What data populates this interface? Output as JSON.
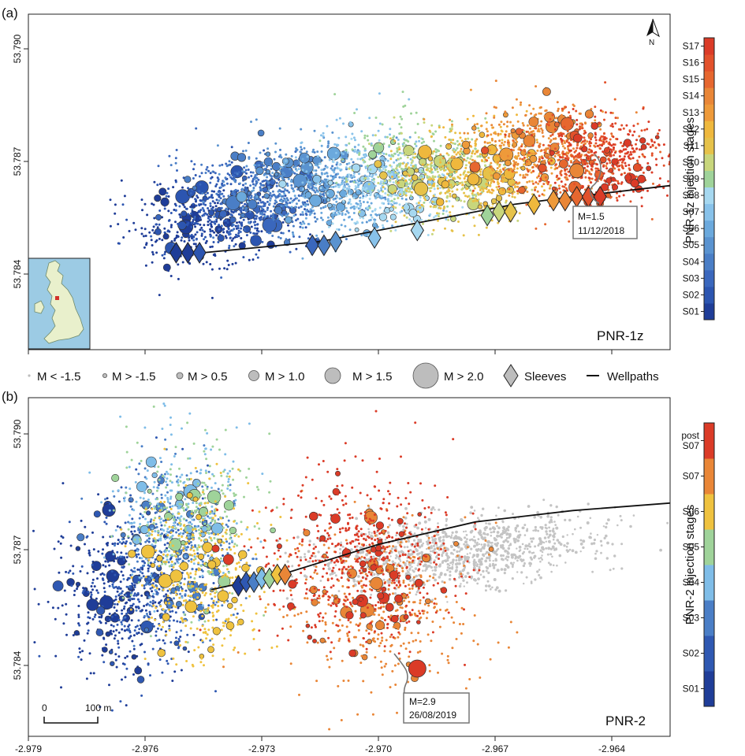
{
  "panels": [
    {
      "letter": "(a)",
      "name": "PNR-1z",
      "colorbar_title": "PNR-1z injection stages",
      "stages": [
        "S01",
        "S02",
        "S03",
        "S04",
        "S05",
        "S06",
        "S07",
        "S08",
        "S09",
        "S10",
        "S11",
        "S12",
        "S13",
        "S14",
        "S15",
        "S16",
        "S17"
      ],
      "stage_colors": [
        "#1f3d98",
        "#2c55b0",
        "#3a67bd",
        "#4a7ec6",
        "#5a93d0",
        "#6ba9dd",
        "#88c2ea",
        "#a6d8f0",
        "#9fd39a",
        "#c8d67c",
        "#e6c24a",
        "#efb83d",
        "#ee9a3a",
        "#e98637",
        "#e6672f",
        "#e2512b",
        "#db3b27"
      ],
      "annotation": {
        "label": "M=1.5",
        "date": "11/12/2018"
      },
      "ylim": [
        53.7825,
        53.7915
      ],
      "yticks": [
        "53.784",
        "53.787",
        "53.790"
      ]
    },
    {
      "letter": "(b)",
      "name": "PNR-2",
      "colorbar_title": "PNR-2 injection stages",
      "stages": [
        "S01",
        "S02",
        "S03",
        "S04",
        "S05",
        "S06",
        "S07",
        "post S07"
      ],
      "stage_labels_display": [
        [
          "S01"
        ],
        [
          "S02"
        ],
        [
          "S03"
        ],
        [
          "S04"
        ],
        [
          "S05"
        ],
        [
          "S06"
        ],
        [
          "S07"
        ],
        [
          "post",
          "S07"
        ]
      ],
      "stage_colors": [
        "#1f3d98",
        "#2f58b2",
        "#4a7ec6",
        "#7fbde8",
        "#9fd39a",
        "#efc23f",
        "#e98637",
        "#db3b27"
      ],
      "annotation": {
        "label": "M=2.9",
        "date": "26/08/2019"
      },
      "scalebar": {
        "start": "0",
        "end": "100 m"
      },
      "ylim": [
        53.7825,
        53.7915
      ],
      "yticks": [
        "53.784",
        "53.787",
        "53.790"
      ]
    }
  ],
  "legend": [
    {
      "label": "M < -1.5"
    },
    {
      "label": "M > -1.5"
    },
    {
      "label": "M > 0.5"
    },
    {
      "label": "M > 1.0"
    },
    {
      "label": "M > 1.5"
    },
    {
      "label": "M > 2.0"
    },
    {
      "label": "Sleeves"
    },
    {
      "label": "Wellpaths"
    }
  ],
  "north_label": "N",
  "xaxis": {
    "xlim": [
      -2.979,
      -2.9625
    ],
    "ticks": [
      "-2.979",
      "-2.976",
      "-2.973",
      "-2.970",
      "-2.967",
      "-2.964"
    ]
  },
  "chart_data": [
    {
      "type": "scatter",
      "panel": "PNR-1z",
      "xlim": [
        -2.979,
        -2.9625
      ],
      "ylim": [
        53.7825,
        53.7915
      ],
      "series_by_stage": "S01-S17",
      "wellpath": {
        "x": [
          -2.9745,
          -2.9715,
          -2.969,
          -2.9665,
          -2.965,
          -2.9625
        ],
        "y": [
          53.7851,
          53.7854,
          53.7859,
          53.7864,
          53.7866,
          53.7869
        ]
      },
      "clusters": [
        {
          "stage": 1,
          "x": -2.9747,
          "y": 53.7858,
          "n": 60
        },
        {
          "stage": 2,
          "x": -2.974,
          "y": 53.7862,
          "n": 60
        },
        {
          "stage": 3,
          "x": -2.9733,
          "y": 53.7865,
          "n": 55
        },
        {
          "stage": 4,
          "x": -2.9725,
          "y": 53.7868,
          "n": 55
        },
        {
          "stage": 5,
          "x": -2.9718,
          "y": 53.7871,
          "n": 50
        },
        {
          "stage": 6,
          "x": -2.971,
          "y": 53.7866,
          "n": 50
        },
        {
          "stage": 7,
          "x": -2.9703,
          "y": 53.7874,
          "n": 50
        },
        {
          "stage": 8,
          "x": -2.9697,
          "y": 53.7868,
          "n": 50
        },
        {
          "stage": 9,
          "x": -2.969,
          "y": 53.7876,
          "n": 50
        },
        {
          "stage": 10,
          "x": -2.9685,
          "y": 53.7872,
          "n": 50
        },
        {
          "stage": 11,
          "x": -2.9678,
          "y": 53.7869,
          "n": 50
        },
        {
          "stage": 12,
          "x": -2.9672,
          "y": 53.7875,
          "n": 45
        },
        {
          "stage": 13,
          "x": -2.9665,
          "y": 53.7878,
          "n": 45
        },
        {
          "stage": 14,
          "x": -2.9655,
          "y": 53.7882,
          "n": 45
        },
        {
          "stage": 15,
          "x": -2.965,
          "y": 53.7874,
          "n": 45
        },
        {
          "stage": 16,
          "x": -2.9645,
          "y": 53.7877,
          "n": 45
        },
        {
          "stage": 17,
          "x": -2.964,
          "y": 53.7876,
          "n": 50
        }
      ],
      "sleeves": [
        {
          "x": -2.9752,
          "y": 53.7851,
          "stage": 1
        },
        {
          "x": -2.9749,
          "y": 53.7851,
          "stage": 1
        },
        {
          "x": -2.9746,
          "y": 53.7851,
          "stage": 2
        },
        {
          "x": -2.9717,
          "y": 53.7853,
          "stage": 3
        },
        {
          "x": -2.9714,
          "y": 53.7853,
          "stage": 4
        },
        {
          "x": -2.9711,
          "y": 53.7854,
          "stage": 5
        },
        {
          "x": -2.9701,
          "y": 53.7855,
          "stage": 7
        },
        {
          "x": -2.969,
          "y": 53.7857,
          "stage": 8
        },
        {
          "x": -2.9672,
          "y": 53.7861,
          "stage": 9
        },
        {
          "x": -2.9669,
          "y": 53.7862,
          "stage": 10
        },
        {
          "x": -2.9666,
          "y": 53.7862,
          "stage": 11
        },
        {
          "x": -2.966,
          "y": 53.7864,
          "stage": 12
        },
        {
          "x": -2.9655,
          "y": 53.7865,
          "stage": 13
        },
        {
          "x": -2.9652,
          "y": 53.7865,
          "stage": 14
        },
        {
          "x": -2.9649,
          "y": 53.7866,
          "stage": 15
        },
        {
          "x": -2.9646,
          "y": 53.7866,
          "stage": 16
        },
        {
          "x": -2.9643,
          "y": 53.7866,
          "stage": 17
        }
      ],
      "largest_event": {
        "magnitude": 1.5,
        "date": "11/12/2018",
        "x": -2.9649,
        "y": 53.7873
      }
    },
    {
      "type": "scatter",
      "panel": "PNR-2",
      "xlim": [
        -2.979,
        -2.9625
      ],
      "ylim": [
        53.7825,
        53.7915
      ],
      "series_by_stage": "S01-S07, post S07",
      "wellpath": {
        "x": [
          -2.9743,
          -2.9725,
          -2.97,
          -2.9675,
          -2.965,
          -2.9625
        ],
        "y": [
          53.7864,
          53.7868,
          53.7876,
          53.7882,
          53.7885,
          53.7887
        ]
      },
      "clusters": [
        {
          "stage": 1,
          "x": -2.9768,
          "y": 53.7862,
          "n": 70
        },
        {
          "stage": 2,
          "x": -2.976,
          "y": 53.7865,
          "n": 70
        },
        {
          "stage": 3,
          "x": -2.9752,
          "y": 53.7875,
          "n": 70
        },
        {
          "stage": 4,
          "x": -2.9752,
          "y": 53.7885,
          "n": 55
        },
        {
          "stage": 5,
          "x": -2.9748,
          "y": 53.7882,
          "n": 55
        },
        {
          "stage": 6,
          "x": -2.9745,
          "y": 53.7868,
          "n": 80
        },
        {
          "stage": 7,
          "x": -2.97,
          "y": 53.786,
          "n": 90
        },
        {
          "stage": 8,
          "x": -2.9705,
          "y": 53.7872,
          "n": 120
        }
      ],
      "previous_well_events": {
        "x": -2.968,
        "y": 53.7874,
        "n": 260
      },
      "sleeves": [
        {
          "x": -2.9736,
          "y": 53.7865,
          "stage": 1
        },
        {
          "x": -2.9734,
          "y": 53.7866,
          "stage": 2
        },
        {
          "x": -2.9732,
          "y": 53.7866,
          "stage": 3
        },
        {
          "x": -2.973,
          "y": 53.7867,
          "stage": 4
        },
        {
          "x": -2.9728,
          "y": 53.7867,
          "stage": 5
        },
        {
          "x": -2.9726,
          "y": 53.7868,
          "stage": 6
        },
        {
          "x": -2.9724,
          "y": 53.7868,
          "stage": 7
        }
      ],
      "largest_event": {
        "magnitude": 2.9,
        "date": "26/08/2019",
        "x": -2.969,
        "y": 53.7843
      }
    }
  ]
}
